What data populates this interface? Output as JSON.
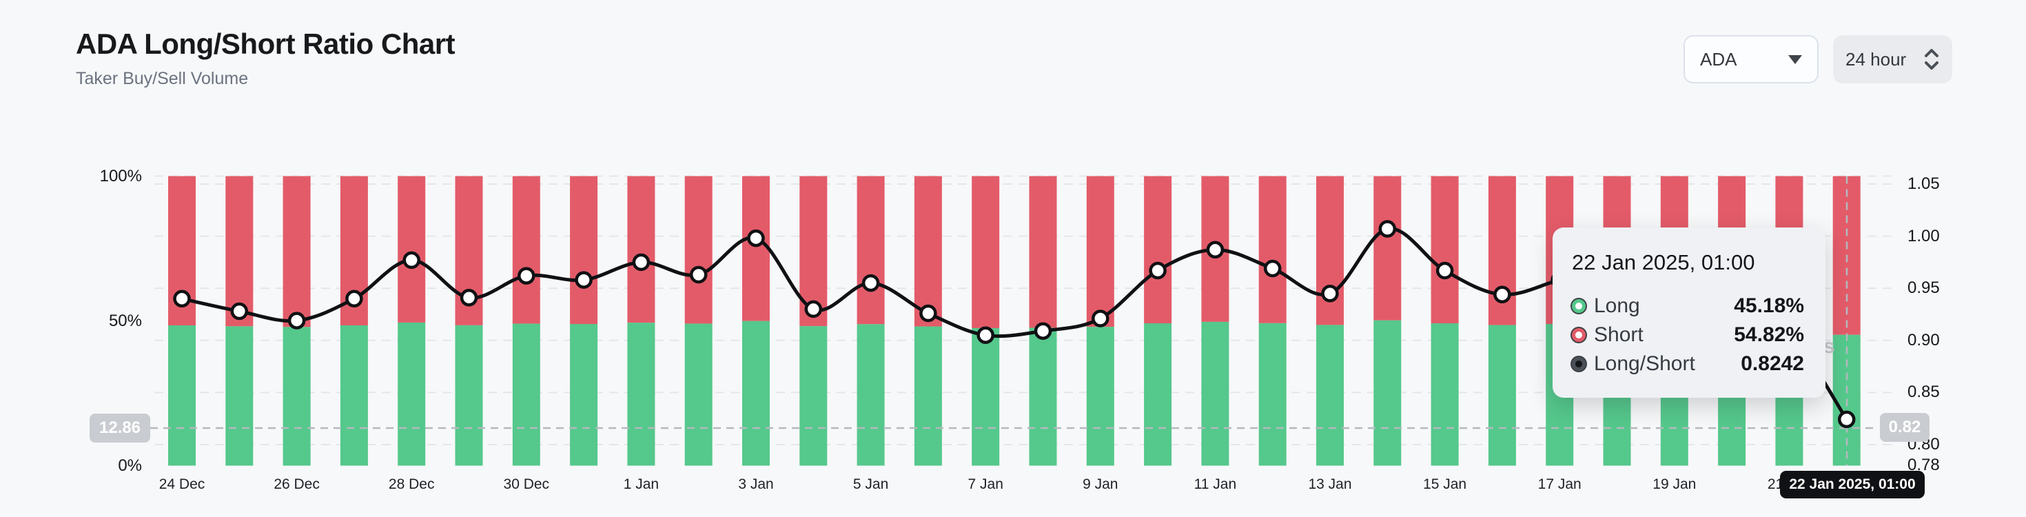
{
  "header": {
    "title": "ADA Long/Short Ratio Chart",
    "subtitle": "Taker Buy/Sell Volume"
  },
  "controls": {
    "symbol": "ADA",
    "interval": "24 hour"
  },
  "axes": {
    "left": [
      "100%",
      "50%",
      "0%"
    ],
    "right": [
      "1.05",
      "1.00",
      "0.95",
      "0.90",
      "0.85",
      "0.80",
      "0.78"
    ]
  },
  "crosshair": {
    "x_label": "22 Jan 2025, 01:00",
    "y_left": "12.86",
    "y_right": "0.82"
  },
  "tooltip": {
    "date": "22 Jan 2025, 01:00",
    "rows": [
      {
        "label": "Long",
        "value": "45.18%"
      },
      {
        "label": "Short",
        "value": "54.82%"
      },
      {
        "label": "Long/Short",
        "value": "0.8242"
      }
    ]
  },
  "watermark": "s",
  "colors": {
    "long": "#55c88c",
    "short": "#e35b69",
    "line": "#101114",
    "badge": "#c9ccd1",
    "grid": "#e5e6e9",
    "crosshair": "#b5b9bf"
  },
  "chart_data": {
    "type": "bar",
    "subtype": "stacked-bar-with-line",
    "title": "ADA Long/Short Ratio Chart",
    "xlabel": "",
    "ylabel": "Taker Buy/Sell Volume",
    "categories": [
      "24 Dec",
      "25 Dec",
      "26 Dec",
      "27 Dec",
      "28 Dec",
      "29 Dec",
      "30 Dec",
      "31 Dec",
      "1 Jan",
      "2 Jan",
      "3 Jan",
      "4 Jan",
      "5 Jan",
      "6 Jan",
      "7 Jan",
      "8 Jan",
      "9 Jan",
      "10 Jan",
      "11 Jan",
      "12 Jan",
      "13 Jan",
      "14 Jan",
      "15 Jan",
      "16 Jan",
      "17 Jan",
      "18 Jan",
      "19 Jan",
      "20 Jan",
      "21 Jan",
      "22 Jan"
    ],
    "x_tick_labels": [
      "24 Dec",
      "26 Dec",
      "28 Dec",
      "30 Dec",
      "1 Jan",
      "3 Jan",
      "5 Jan",
      "7 Jan",
      "9 Jan",
      "11 Jan",
      "13 Jan",
      "15 Jan",
      "17 Jan",
      "19 Jan",
      "21 Jan"
    ],
    "series": [
      {
        "name": "Long",
        "type": "bar",
        "stack": "volume",
        "unit": "%",
        "color": "#55c88c",
        "values": [
          48.45,
          48.13,
          47.89,
          48.45,
          49.42,
          48.48,
          49.03,
          48.93,
          49.37,
          49.06,
          49.95,
          48.19,
          48.85,
          48.08,
          47.51,
          47.62,
          47.94,
          49.16,
          49.67,
          49.21,
          48.59,
          50.17,
          49.16,
          48.56,
          48.93,
          49.29,
          49.49,
          48.85,
          47.64,
          45.18
        ]
      },
      {
        "name": "Short",
        "type": "bar",
        "stack": "volume",
        "unit": "%",
        "color": "#e35b69",
        "values": [
          51.55,
          51.87,
          52.11,
          51.55,
          50.58,
          51.52,
          50.97,
          51.07,
          50.63,
          50.94,
          50.05,
          51.81,
          51.15,
          51.92,
          52.49,
          52.38,
          52.06,
          50.84,
          50.33,
          50.79,
          51.41,
          49.83,
          50.84,
          51.44,
          51.07,
          50.71,
          50.51,
          51.15,
          52.36,
          54.82
        ]
      },
      {
        "name": "Long/Short",
        "type": "line",
        "color": "#101114",
        "values": [
          0.94,
          0.928,
          0.919,
          0.94,
          0.977,
          0.941,
          0.962,
          0.958,
          0.975,
          0.963,
          0.998,
          0.93,
          0.955,
          0.926,
          0.905,
          0.909,
          0.921,
          0.967,
          0.987,
          0.969,
          0.945,
          1.007,
          0.967,
          0.944,
          0.958,
          0.972,
          0.98,
          0.955,
          0.91,
          0.8242
        ]
      }
    ],
    "left_axis": {
      "ticks": [
        "100%",
        "50%",
        "0%"
      ],
      "range": [
        0,
        100
      ],
      "grid": true
    },
    "right_axis": {
      "ticks": [
        "1.05",
        "1.00",
        "0.95",
        "0.90",
        "0.85",
        "0.80",
        "0.78"
      ],
      "tick_values": [
        1.05,
        1.0,
        0.95,
        0.9,
        0.85,
        0.8,
        0.78
      ],
      "range": [
        0.78,
        1.057
      ]
    },
    "legend_position": "none",
    "highlighted_point": {
      "category": "22 Jan",
      "time": "22 Jan 2025, 01:00",
      "long": "45.18%",
      "short": "54.82%",
      "ratio": 0.8242
    }
  }
}
